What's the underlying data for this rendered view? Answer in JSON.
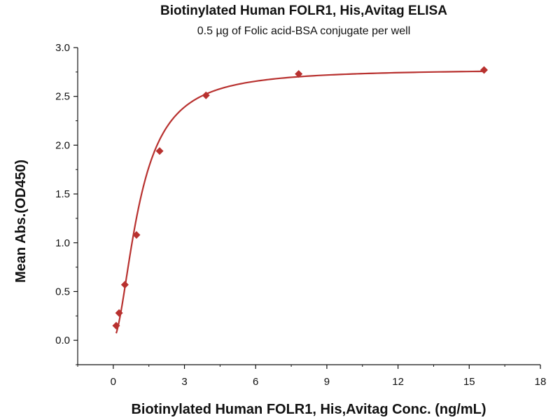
{
  "chart_data": {
    "type": "scatter",
    "title": "Biotinylated Human FOLR1, His,Avitag ELISA",
    "subtitle": "0.5 µg of Folic acid-BSA conjugate per well",
    "xlabel": "Biotinylated Human FOLR1, His,Avitag Conc. (ng/mL)",
    "ylabel": "Mean Abs.(OD450)",
    "xlim": [
      -1.5,
      18
    ],
    "ylim": [
      -0.25,
      3.0
    ],
    "xticks": [
      0,
      3,
      6,
      9,
      12,
      15,
      18
    ],
    "xtick_labels": [
      "0",
      "3",
      "6",
      "9",
      "12",
      "15",
      "18"
    ],
    "yticks": [
      0.0,
      0.5,
      1.0,
      1.5,
      2.0,
      2.5,
      3.0
    ],
    "ytick_labels": [
      "0.0",
      "0.5",
      "1.0",
      "1.5",
      "2.0",
      "2.5",
      "3.0"
    ],
    "grid": false,
    "series": [
      {
        "marker": "diamond",
        "color": "#b8312f",
        "x": [
          0.122,
          0.244,
          0.488,
          0.977,
          1.953,
          3.906,
          7.813,
          15.625
        ],
        "y": [
          0.15,
          0.28,
          0.57,
          1.08,
          1.94,
          2.51,
          2.73,
          2.77
        ]
      }
    ],
    "fit_curve": {
      "color": "#b8312f",
      "model": "4PL"
    }
  }
}
